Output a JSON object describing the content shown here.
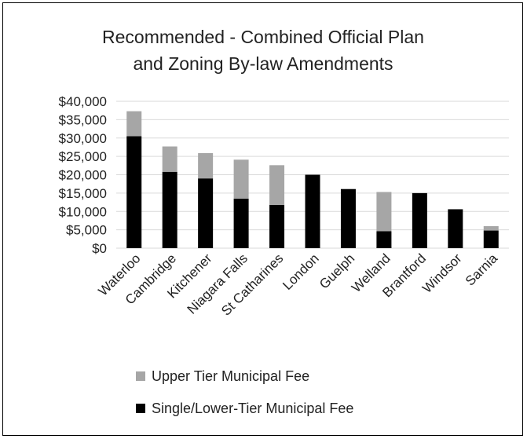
{
  "chart_data": {
    "type": "bar",
    "stacked": true,
    "title": "Recommended - Combined Official Plan and Zoning By-law Amendments",
    "title_lines": [
      "Recommended - Combined Official Plan",
      "and Zoning By-law Amendments"
    ],
    "categories": [
      "Waterloo",
      "Cambridge",
      "Kitchener",
      "Niagara Falls",
      "St Catharines",
      "London",
      "Guelph",
      "Welland",
      "Brantford",
      "Windsor",
      "Sarnia"
    ],
    "series": [
      {
        "name": "Single/Lower-Tier Municipal Fee",
        "color": "#000000",
        "values": [
          30500,
          20800,
          19000,
          13500,
          11800,
          20000,
          16100,
          4600,
          15000,
          10600,
          4800
        ]
      },
      {
        "name": "Upper Tier Municipal Fee",
        "color": "#a6a6a6",
        "values": [
          6800,
          6900,
          6900,
          10600,
          10800,
          0,
          0,
          10700,
          0,
          0,
          1200
        ]
      }
    ],
    "y_ticks": [
      "$0",
      "$5,000",
      "$10,000",
      "$15,000",
      "$20,000",
      "$25,000",
      "$30,000",
      "$35,000",
      "$40,000"
    ],
    "ylim": [
      0,
      40000
    ],
    "y_step": 5000,
    "grid": true,
    "legend_position": "bottom",
    "legend": [
      {
        "name": "Upper Tier Municipal Fee",
        "color": "#a6a6a6"
      },
      {
        "name": "Single/Lower-Tier Municipal Fee",
        "color": "#000000"
      }
    ],
    "xlabel": "",
    "ylabel": ""
  }
}
